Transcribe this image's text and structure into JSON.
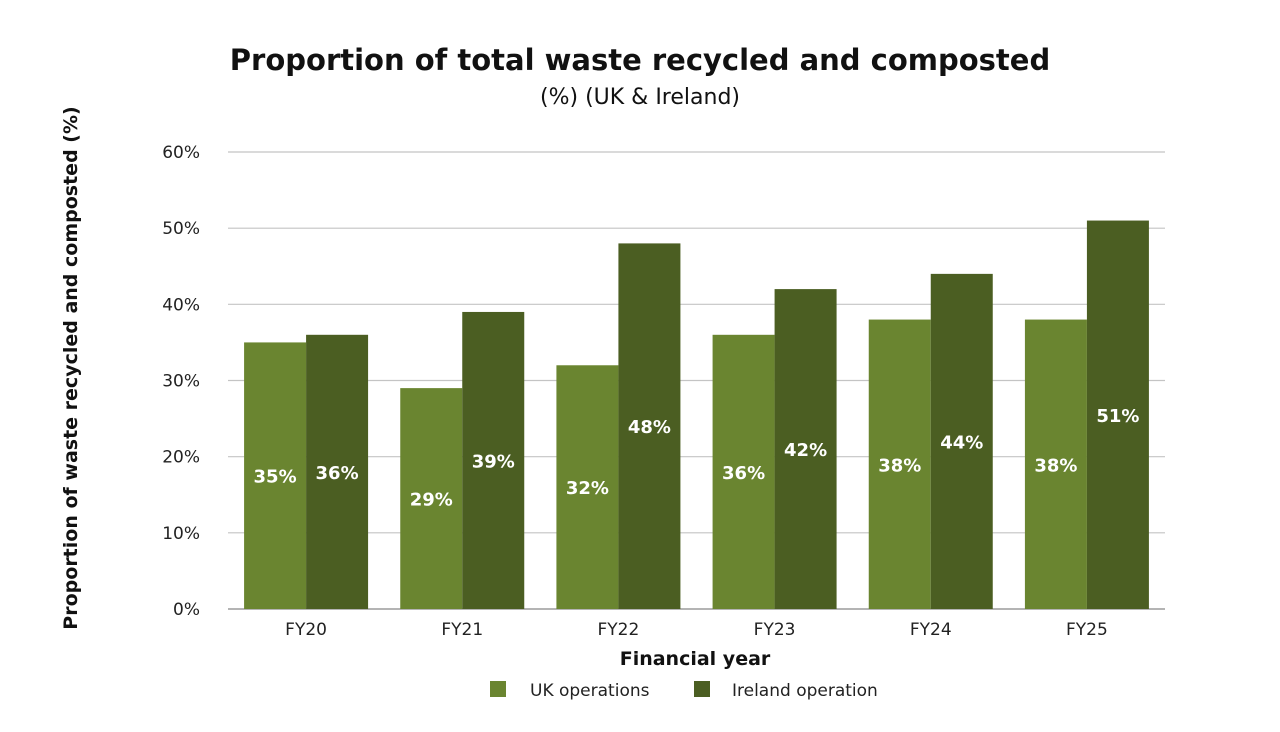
{
  "chart_data": {
    "type": "bar",
    "title": "Proportion of total waste recycled and composted",
    "subtitle": "(%) (UK & Ireland)",
    "xlabel": "Financial year",
    "ylabel": "Proportion of waste recycled and composted (%)",
    "categories": [
      "FY20",
      "FY21",
      "FY22",
      "FY23",
      "FY24",
      "FY25"
    ],
    "ylim": [
      0,
      60
    ],
    "yticks": [
      "0%",
      "10%",
      "20%",
      "30%",
      "40%",
      "50%",
      "60%"
    ],
    "grid": true,
    "legend_position": "bottom",
    "series": [
      {
        "name": "UK operations",
        "color": "#6a8530",
        "values": [
          35,
          29,
          32,
          36,
          38,
          38
        ],
        "labels": [
          "35%",
          "29%",
          "32%",
          "36%",
          "38%",
          "38%"
        ]
      },
      {
        "name": "Ireland operation",
        "color": "#4b5e22",
        "values": [
          36,
          39,
          48,
          42,
          44,
          51
        ],
        "labels": [
          "36%",
          "39%",
          "48%",
          "42%",
          "44%",
          "51%"
        ]
      }
    ]
  }
}
